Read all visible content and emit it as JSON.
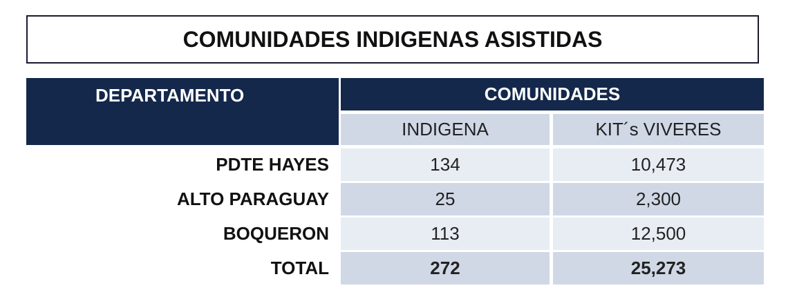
{
  "header": {
    "title": "COMUNIDADES INDIGENAS ASISTIDAS"
  },
  "table": {
    "department_header": "DEPARTAMENTO",
    "group_header": "COMUNIDADES",
    "columns": [
      "INDIGENA",
      "KIT´s VIVERES"
    ],
    "rows": [
      [
        "PDTE HAYES",
        "134",
        "10,473"
      ],
      [
        "ALTO PARAGUAY",
        "25",
        "2,300"
      ],
      [
        "BOQUERON",
        "113",
        "12,500"
      ],
      [
        "TOTAL",
        "272",
        "25,273"
      ]
    ]
  }
}
